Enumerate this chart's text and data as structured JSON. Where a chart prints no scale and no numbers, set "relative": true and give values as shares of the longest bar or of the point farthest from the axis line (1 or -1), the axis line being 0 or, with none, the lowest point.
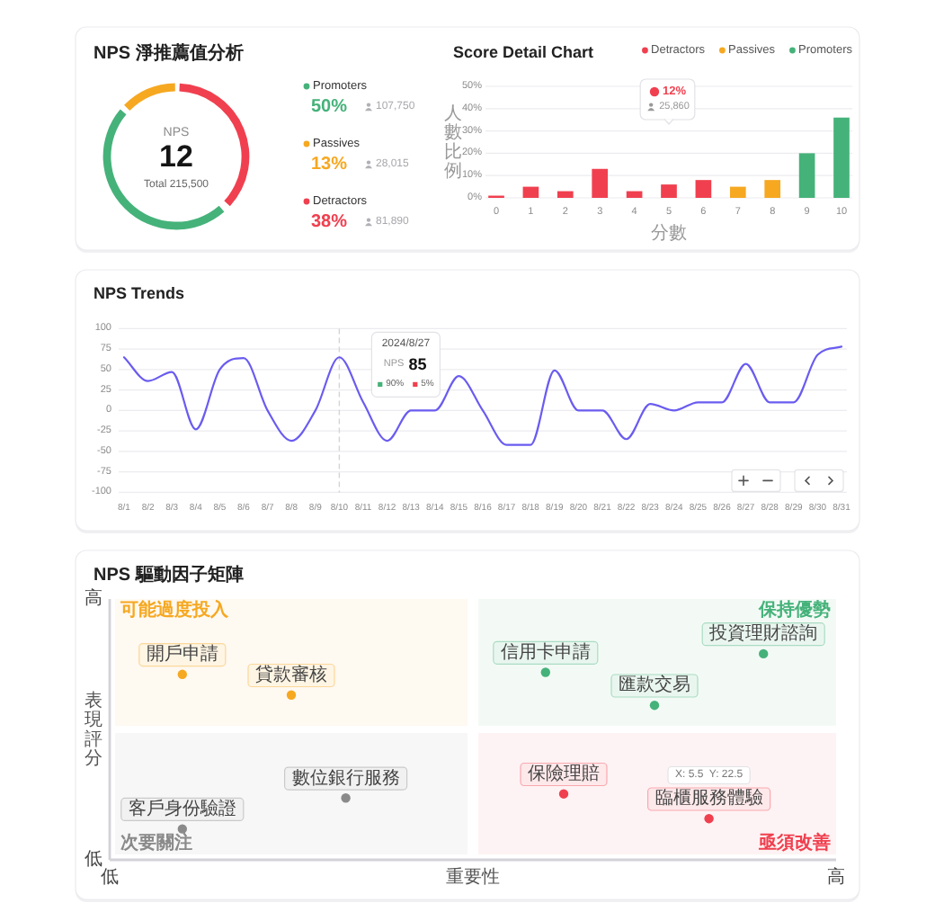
{
  "chart_data": [
    {
      "type": "donut",
      "title": "NPS 淨推薦值分析",
      "categories": [
        "Promoters",
        "Passives",
        "Detractors"
      ],
      "values": [
        50,
        13,
        38
      ],
      "colors": [
        "#45b27a",
        "#f6a821",
        "#f0404f"
      ],
      "value_labels": [
        "50%",
        "13%",
        "38%"
      ],
      "legend": "right",
      "annotations": [
        "NPS",
        "12",
        "Total 215,500",
        "107,750",
        "28,015",
        "81,890"
      ]
    },
    {
      "type": "bar",
      "title": "Score Detail Chart",
      "xlabel": "分數",
      "ylabel": "人數比例",
      "categories": [
        "0",
        "1",
        "2",
        "3",
        "4",
        "5",
        "6",
        "7",
        "8",
        "9",
        "10"
      ],
      "stacked": true,
      "series": [
        {
          "name": "Detractors",
          "color": "#f0404f",
          "values": [
            1,
            5,
            3,
            13,
            3,
            6,
            8,
            null,
            null,
            null,
            null
          ]
        },
        {
          "name": "Passives",
          "color": "#f6a821",
          "values": [
            null,
            null,
            null,
            null,
            null,
            null,
            null,
            5,
            8,
            null,
            null
          ]
        },
        {
          "name": "Promoters",
          "color": "#45b27a",
          "values": [
            null,
            null,
            null,
            null,
            null,
            null,
            null,
            null,
            null,
            20,
            36
          ]
        }
      ],
      "ylim": [
        0,
        50
      ],
      "yticks": [
        {
          "value": 0,
          "label": "0%"
        },
        {
          "value": 10,
          "label": "10%"
        },
        {
          "value": 20,
          "label": "20%"
        },
        {
          "value": 30,
          "label": "30%"
        },
        {
          "value": 40,
          "label": "40%"
        },
        {
          "value": 50,
          "label": "50%"
        }
      ],
      "grid": "y",
      "legend": "top right",
      "annotations": [
        "12%",
        "25,860"
      ]
    },
    {
      "type": "line",
      "title": "NPS Trends",
      "categories": [
        "8/1",
        "8/2",
        "8/3",
        "8/4",
        "8/5",
        "8/6",
        "8/7",
        "8/8",
        "8/9",
        "8/10",
        "8/11",
        "8/12",
        "8/13",
        "8/14",
        "8/15",
        "8/16",
        "8/17",
        "8/18",
        "8/19",
        "8/20",
        "8/21",
        "8/22",
        "8/23",
        "8/24",
        "8/25",
        "8/26",
        "8/27",
        "8/28",
        "8/29",
        "8/30",
        "8/31"
      ],
      "values": [
        65,
        36,
        47,
        -23,
        50,
        64,
        0,
        -37,
        0,
        65,
        10,
        -37,
        0,
        0,
        42,
        0,
        -42,
        -42,
        49,
        0,
        0,
        -35,
        8,
        0,
        10,
        10,
        57,
        10,
        10,
        68,
        78
      ],
      "color": "#6a5cf0",
      "ylim": [
        -100,
        100
      ],
      "yticks": [
        -100,
        -75,
        -50,
        -25,
        0,
        25,
        50,
        75,
        100
      ],
      "grid": "y",
      "ref_lines": [
        {
          "axis": "x",
          "value": "8/10",
          "color": "#d4d4d8",
          "line_style": "dashed"
        }
      ],
      "annotations": [
        "2024/8/27",
        "NPS",
        "85",
        "90%",
        "5%"
      ]
    },
    {
      "type": "scatter",
      "title": "NPS 驅動因子矩陣",
      "xlabel": "重要性",
      "ylabel": "表現評分",
      "relative": true,
      "marker": "circle",
      "categories": [
        "低",
        null,
        null,
        null,
        null,
        null,
        null,
        null,
        null,
        null,
        null,
        null,
        null,
        null,
        null,
        null,
        null,
        null,
        null,
        null,
        null,
        null,
        null,
        null,
        null,
        null,
        null,
        null,
        null,
        null,
        null,
        null,
        null,
        null,
        null,
        null,
        null,
        null,
        null,
        null,
        "高"
      ],
      "series": [
        {
          "name": "可能過度投入",
          "color": "#f6a821",
          "values": [
            null,
            null,
            null,
            null,
            0.9,
            null,
            null,
            null,
            null,
            null,
            0.8,
            null,
            null,
            null,
            null,
            null,
            null,
            null,
            null,
            null,
            null,
            null,
            null,
            null,
            null,
            null,
            null,
            null,
            null,
            null,
            null,
            null,
            null,
            null,
            null,
            null,
            null,
            null,
            null,
            null,
            null
          ]
        },
        {
          "name": "保持優勢",
          "color": "#45b27a",
          "values": [
            null,
            null,
            null,
            null,
            null,
            null,
            null,
            null,
            null,
            null,
            null,
            null,
            null,
            null,
            null,
            null,
            null,
            null,
            null,
            null,
            null,
            null,
            null,
            null,
            0.91,
            null,
            null,
            null,
            null,
            null,
            0.75,
            null,
            null,
            null,
            null,
            null,
            1,
            null,
            null,
            null,
            null
          ]
        },
        {
          "name": "次要關注",
          "color": "#8a8a8a",
          "values": [
            null,
            null,
            null,
            null,
            0.15,
            null,
            null,
            null,
            null,
            null,
            null,
            null,
            null,
            0.3,
            null,
            null,
            null,
            null,
            null,
            null,
            null,
            null,
            null,
            null,
            null,
            null,
            null,
            null,
            null,
            null,
            null,
            null,
            null,
            null,
            null,
            null,
            null,
            null,
            null,
            null,
            null
          ]
        },
        {
          "name": "亟須改善",
          "color": "#f0404f",
          "values": [
            null,
            null,
            null,
            null,
            null,
            null,
            null,
            null,
            null,
            null,
            null,
            null,
            null,
            null,
            null,
            null,
            null,
            null,
            null,
            null,
            null,
            null,
            null,
            null,
            null,
            0.32,
            null,
            null,
            null,
            null,
            null,
            null,
            null,
            0.2,
            null,
            null,
            null,
            null,
            null,
            null,
            null
          ]
        }
      ],
      "annotations": [
        "高",
        "低",
        "X: 5.5  Y: 22.5",
        {
          "text": "開戶申請",
          "y": 0.9
        },
        {
          "text": "貸款審核",
          "y": 0.8
        },
        {
          "text": "信用卡申請",
          "y": 0.91
        },
        {
          "text": "匯款交易",
          "y": 0.75
        },
        {
          "text": "投資理財諮詢",
          "y": 1
        },
        {
          "text": "客戶身份驗證",
          "y": 0.15
        },
        {
          "text": "數位銀行服務",
          "y": 0.3
        },
        {
          "text": "保險理賠",
          "y": 0.32
        },
        {
          "text": "臨櫃服務體驗",
          "y": 0.2
        }
      ]
    }
  ]
}
